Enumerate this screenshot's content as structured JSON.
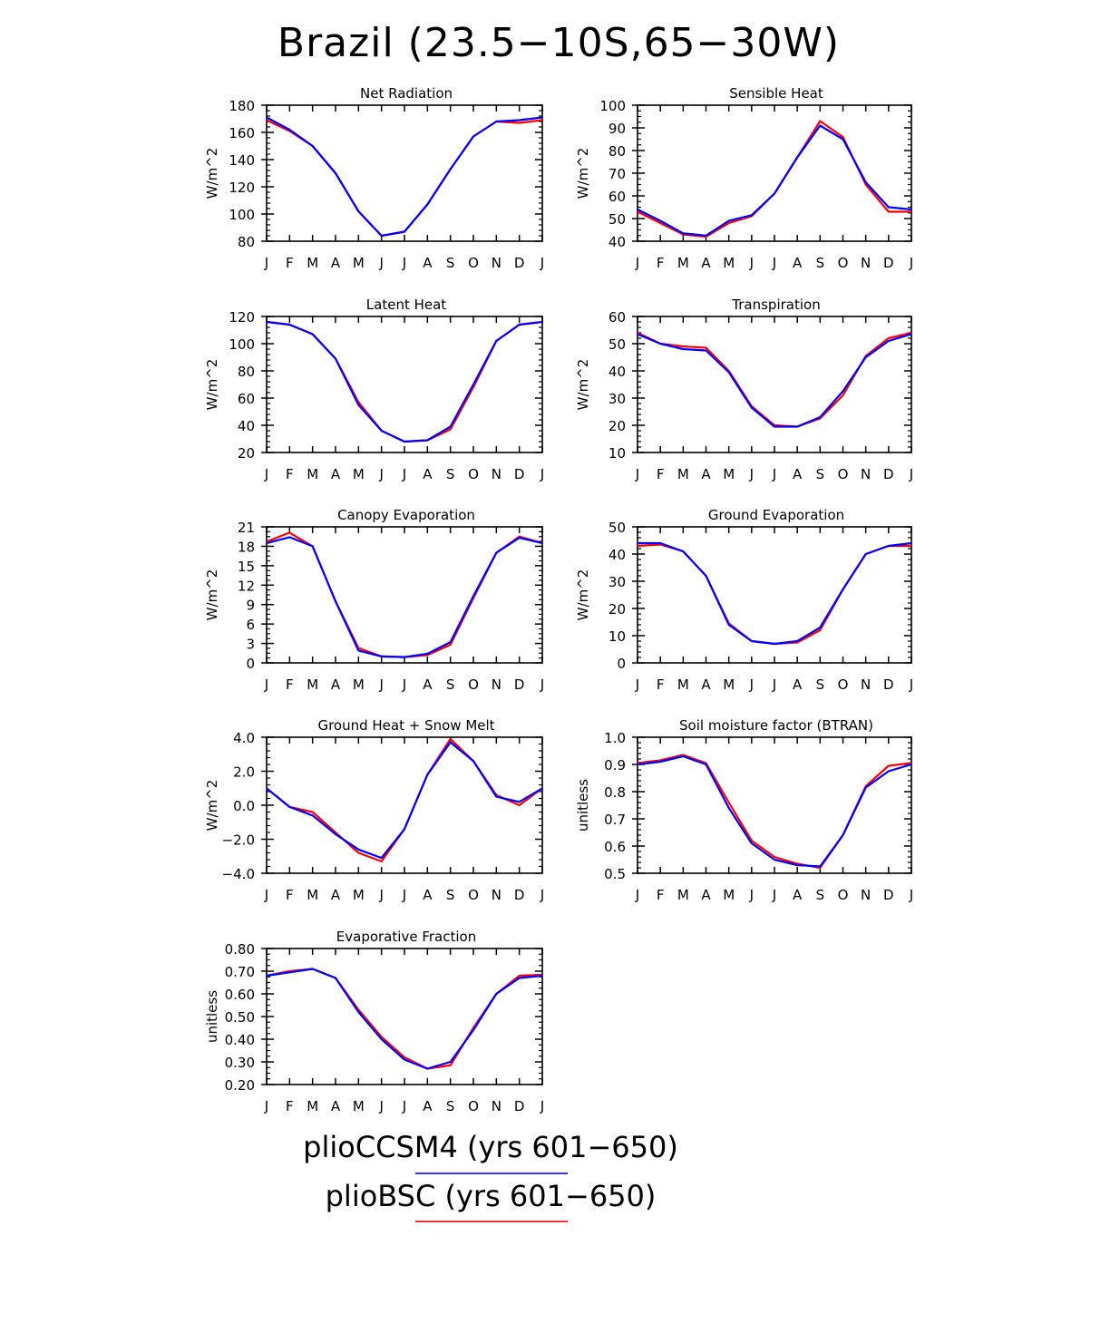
{
  "title": "Brazil (23.5−10S,65−30W)",
  "legend": [
    {
      "label": "plioCCSM4 (yrs 601−650)",
      "color": "#3333ff"
    },
    {
      "label": "plioBSC (yrs 601−650)",
      "color": "#ff3333"
    }
  ],
  "colors": {
    "plioCCSM4": "#0000ff",
    "plioBSC": "#ff0000"
  },
  "chart_data": [
    {
      "type": "line",
      "title": "Net Radiation",
      "ylabel": "W/m^2",
      "x": [
        "J",
        "F",
        "M",
        "A",
        "M",
        "J",
        "J",
        "A",
        "S",
        "O",
        "N",
        "D",
        "J"
      ],
      "ylim": [
        80,
        180
      ],
      "yticks": [
        "80",
        "100",
        "120",
        "140",
        "160",
        "180"
      ],
      "series": [
        {
          "name": "plioBSC (yrs 601−650)",
          "color": "#ff0000",
          "values": [
            169,
            161,
            150,
            130,
            102,
            84,
            87,
            107,
            133,
            157,
            168,
            167,
            169
          ]
        },
        {
          "name": "plioCCSM4 (yrs 601−650)",
          "color": "#0000ff",
          "values": [
            171,
            162,
            150,
            130,
            102,
            84,
            87,
            107,
            133,
            157,
            168,
            169,
            171
          ]
        }
      ]
    },
    {
      "type": "line",
      "title": "Sensible Heat",
      "ylabel": "W/m^2",
      "x": [
        "J",
        "F",
        "M",
        "A",
        "M",
        "J",
        "J",
        "A",
        "S",
        "O",
        "N",
        "D",
        "J"
      ],
      "ylim": [
        40,
        100
      ],
      "yticks": [
        "40",
        "50",
        "60",
        "70",
        "80",
        "90",
        "100"
      ],
      "series": [
        {
          "name": "plioBSC (yrs 601−650)",
          "color": "#ff0000",
          "values": [
            53,
            48,
            43,
            42,
            48,
            51,
            61,
            77,
            93,
            86,
            65,
            53,
            53
          ]
        },
        {
          "name": "plioCCSM4 (yrs 601−650)",
          "color": "#0000ff",
          "values": [
            54,
            49,
            43.5,
            42.5,
            49,
            51.5,
            61,
            77,
            91,
            85,
            66,
            55,
            54
          ]
        }
      ]
    },
    {
      "type": "line",
      "title": "Latent Heat",
      "ylabel": "W/m^2",
      "x": [
        "J",
        "F",
        "M",
        "A",
        "M",
        "J",
        "J",
        "A",
        "S",
        "O",
        "N",
        "D",
        "J"
      ],
      "ylim": [
        20,
        120
      ],
      "yticks": [
        "20",
        "40",
        "60",
        "80",
        "100",
        "120"
      ],
      "series": [
        {
          "name": "plioBSC (yrs 601−650)",
          "color": "#ff0000",
          "values": [
            116,
            114,
            107,
            89,
            57,
            36,
            28,
            29,
            37,
            68,
            102,
            114,
            116
          ]
        },
        {
          "name": "plioCCSM4 (yrs 601−650)",
          "color": "#0000ff",
          "values": [
            116,
            114,
            107,
            89,
            55,
            36,
            28,
            29,
            39,
            70,
            102,
            114,
            116
          ]
        }
      ]
    },
    {
      "type": "line",
      "title": "Transpiration",
      "ylabel": "W/m^2",
      "x": [
        "J",
        "F",
        "M",
        "A",
        "M",
        "J",
        "J",
        "A",
        "S",
        "O",
        "N",
        "D",
        "J"
      ],
      "ylim": [
        10,
        60
      ],
      "yticks": [
        "10",
        "20",
        "30",
        "40",
        "50",
        "60"
      ],
      "series": [
        {
          "name": "plioBSC (yrs 601−650)",
          "color": "#ff0000",
          "values": [
            54,
            50,
            49,
            48.5,
            40,
            27,
            20,
            19.5,
            22.5,
            31,
            45.5,
            52,
            54
          ]
        },
        {
          "name": "plioCCSM4 (yrs 601−650)",
          "color": "#0000ff",
          "values": [
            53.5,
            50,
            48,
            47.5,
            39.5,
            26.5,
            19.5,
            19.5,
            23,
            32.5,
            45,
            51,
            53.5
          ]
        }
      ]
    },
    {
      "type": "line",
      "title": "Canopy Evaporation",
      "ylabel": "W/m^2",
      "x": [
        "J",
        "F",
        "M",
        "A",
        "M",
        "J",
        "J",
        "A",
        "S",
        "O",
        "N",
        "D",
        "J"
      ],
      "ylim": [
        0,
        21
      ],
      "yticks": [
        "0",
        "3",
        "6",
        "9",
        "12",
        "15",
        "18",
        "21"
      ],
      "series": [
        {
          "name": "plioBSC (yrs 601−650)",
          "color": "#ff0000",
          "values": [
            18.7,
            20.1,
            18.0,
            9.5,
            2.3,
            1.0,
            0.9,
            1.2,
            2.8,
            10.0,
            17.0,
            19.5,
            18.5
          ]
        },
        {
          "name": "plioCCSM4 (yrs 601−650)",
          "color": "#0000ff",
          "values": [
            18.5,
            19.4,
            18.0,
            9.5,
            1.9,
            1.0,
            0.9,
            1.4,
            3.2,
            10.3,
            17.0,
            19.3,
            18.5
          ]
        }
      ]
    },
    {
      "type": "line",
      "title": "Ground Evaporation",
      "ylabel": "W/m^2",
      "x": [
        "J",
        "F",
        "M",
        "A",
        "M",
        "J",
        "J",
        "A",
        "S",
        "O",
        "N",
        "D",
        "J"
      ],
      "ylim": [
        0,
        50
      ],
      "yticks": [
        "0",
        "10",
        "20",
        "30",
        "40",
        "50"
      ],
      "series": [
        {
          "name": "plioBSC (yrs 601−650)",
          "color": "#ff0000",
          "values": [
            43,
            43.5,
            41,
            32,
            14.5,
            8,
            7,
            7.5,
            12,
            27,
            40,
            43,
            43
          ]
        },
        {
          "name": "plioCCSM4 (yrs 601−650)",
          "color": "#0000ff",
          "values": [
            44,
            44,
            41,
            32,
            14,
            8,
            7,
            8,
            13,
            27,
            40,
            43,
            44
          ]
        }
      ]
    },
    {
      "type": "line",
      "title": "Ground Heat + Snow Melt",
      "ylabel": "W/m^2",
      "x": [
        "J",
        "F",
        "M",
        "A",
        "M",
        "J",
        "J",
        "A",
        "S",
        "O",
        "N",
        "D",
        "J"
      ],
      "ylim": [
        -4.0,
        4.0
      ],
      "yticks": [
        "−4.0",
        "−2.0",
        "0.0",
        "2.0",
        "4.0"
      ],
      "series": [
        {
          "name": "plioBSC (yrs 601−650)",
          "color": "#ff0000",
          "values": [
            1.0,
            -0.1,
            -0.4,
            -1.6,
            -2.8,
            -3.3,
            -1.4,
            1.8,
            3.9,
            2.6,
            0.6,
            0.0,
            1.0
          ]
        },
        {
          "name": "plioCCSM4 (yrs 601−650)",
          "color": "#0000ff",
          "values": [
            1.0,
            -0.1,
            -0.6,
            -1.7,
            -2.6,
            -3.1,
            -1.4,
            1.8,
            3.7,
            2.6,
            0.5,
            0.2,
            1.0
          ]
        }
      ]
    },
    {
      "type": "line",
      "title": "Soil moisture factor (BTRAN)",
      "ylabel": "unitless",
      "x": [
        "J",
        "F",
        "M",
        "A",
        "M",
        "J",
        "J",
        "A",
        "S",
        "O",
        "N",
        "D",
        "J"
      ],
      "ylim": [
        0.5,
        1.0
      ],
      "yticks": [
        "0.5",
        "0.6",
        "0.7",
        "0.8",
        "0.9",
        "1.0"
      ],
      "series": [
        {
          "name": "plioBSC (yrs 601−650)",
          "color": "#ff0000",
          "values": [
            0.905,
            0.915,
            0.935,
            0.905,
            0.76,
            0.62,
            0.56,
            0.535,
            0.52,
            0.64,
            0.82,
            0.895,
            0.905
          ]
        },
        {
          "name": "plioCCSM4 (yrs 601−650)",
          "color": "#0000ff",
          "values": [
            0.9,
            0.91,
            0.93,
            0.9,
            0.74,
            0.61,
            0.55,
            0.53,
            0.525,
            0.64,
            0.815,
            0.875,
            0.9
          ]
        }
      ]
    },
    {
      "type": "line",
      "title": "Evaporative Fraction",
      "ylabel": "unitless",
      "x": [
        "J",
        "F",
        "M",
        "A",
        "M",
        "J",
        "J",
        "A",
        "S",
        "O",
        "N",
        "D",
        "J"
      ],
      "ylim": [
        0.2,
        0.8
      ],
      "yticks": [
        "0.20",
        "0.30",
        "0.40",
        "0.50",
        "0.60",
        "0.70",
        "0.80"
      ],
      "series": [
        {
          "name": "plioBSC (yrs 601−650)",
          "color": "#ff0000",
          "values": [
            0.68,
            0.7,
            0.71,
            0.67,
            0.53,
            0.41,
            0.32,
            0.27,
            0.285,
            0.45,
            0.6,
            0.68,
            0.685
          ]
        },
        {
          "name": "plioCCSM4 (yrs 601−650)",
          "color": "#0000ff",
          "values": [
            0.68,
            0.695,
            0.71,
            0.67,
            0.52,
            0.4,
            0.31,
            0.27,
            0.3,
            0.44,
            0.6,
            0.67,
            0.68
          ]
        }
      ]
    }
  ]
}
